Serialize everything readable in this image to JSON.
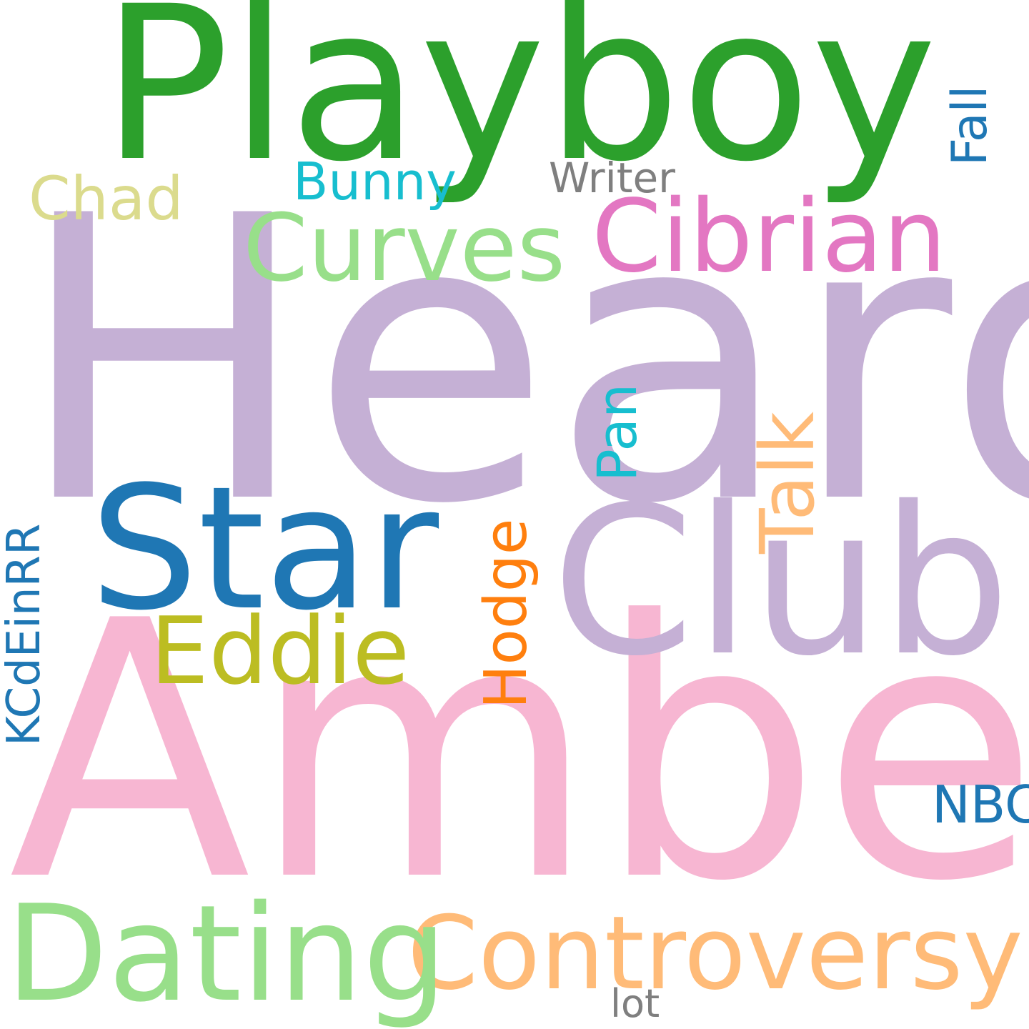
{
  "word_cloud": {
    "words": [
      {
        "id": "heard",
        "text": "Heard",
        "color": "#c5b0d5"
      },
      {
        "id": "amber",
        "text": "Amber",
        "color": "#f7b6d2"
      },
      {
        "id": "playboy",
        "text": "Playboy",
        "color": "#2ca02c"
      },
      {
        "id": "club",
        "text": "Club",
        "color": "#c5b0d5"
      },
      {
        "id": "star",
        "text": "Star",
        "color": "#1f77b4"
      },
      {
        "id": "controversy",
        "text": "Controversy",
        "color": "#ffbb78"
      },
      {
        "id": "dating",
        "text": "Dating",
        "color": "#98df8a"
      },
      {
        "id": "curves",
        "text": "Curves",
        "color": "#98df8a"
      },
      {
        "id": "cibrian",
        "text": "Cibrian",
        "color": "#e377c2"
      },
      {
        "id": "eddie",
        "text": "Eddie",
        "color": "#bcbd22"
      },
      {
        "id": "talk",
        "text": "Talk",
        "color": "#ffbb78"
      },
      {
        "id": "hodge",
        "text": "Hodge",
        "color": "#ff7f0e"
      },
      {
        "id": "kcdeinrr",
        "text": "KCdEinRR",
        "color": "#1f77b4"
      },
      {
        "id": "pan",
        "text": "Pan",
        "color": "#17becf"
      },
      {
        "id": "chad",
        "text": "Chad",
        "color": "#dbdb8d"
      },
      {
        "id": "bunny",
        "text": "Bunny",
        "color": "#17becf"
      },
      {
        "id": "fall",
        "text": "Fall",
        "color": "#1f77b4"
      },
      {
        "id": "writer",
        "text": "Writer",
        "color": "#7f7f7f"
      },
      {
        "id": "nbc",
        "text": "NBC",
        "color": "#1f77b4"
      },
      {
        "id": "lot",
        "text": "lot",
        "color": "#7f7f7f"
      }
    ]
  }
}
